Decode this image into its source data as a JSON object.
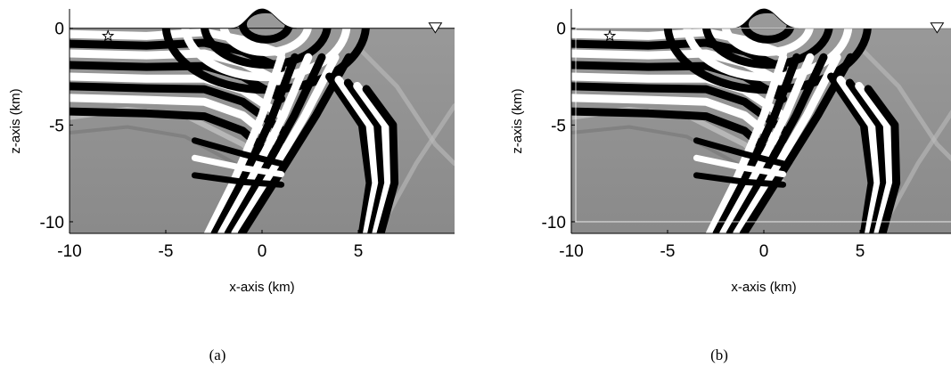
{
  "chart_data": [
    {
      "type": "image",
      "x_label": "x-axis (km)",
      "y_label": "z-axis (km)",
      "caption": "(a)",
      "xlim": [
        -10,
        10
      ],
      "ylim": [
        -10.6,
        1
      ],
      "xticks": [
        -10,
        -5,
        0,
        5
      ],
      "yticks": [
        0,
        -5,
        -10
      ]
    },
    {
      "type": "image",
      "x_label": "x-axis (km)",
      "y_label": "z-axis (km)",
      "caption": "(b)",
      "xlim": [
        -10,
        10
      ],
      "ylim": [
        -10.6,
        1
      ],
      "xticks": [
        -10,
        -5,
        0,
        5
      ],
      "yticks": [
        0,
        -5,
        -10
      ]
    }
  ]
}
